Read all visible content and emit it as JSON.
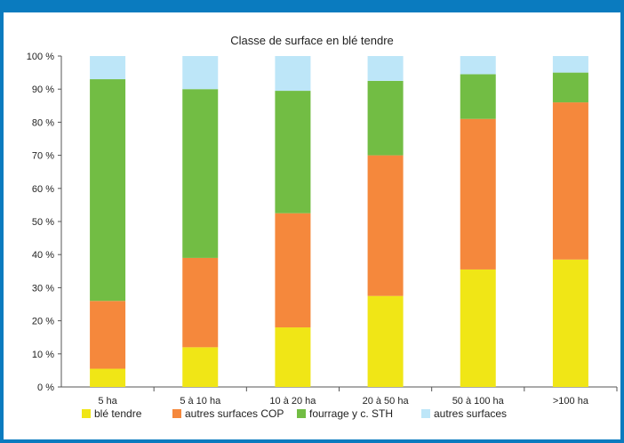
{
  "chart_data": {
    "type": "bar",
    "stacked": true,
    "normalized": true,
    "title": "Classe de surface en blé tendre",
    "categories": [
      "5 ha",
      "5 à 10 ha",
      "10 à 20 ha",
      "20 à 50 ha",
      "50 à 100 ha",
      ">100 ha"
    ],
    "series": [
      {
        "name": "blé tendre",
        "color": "#f0e616",
        "values": [
          5.5,
          12,
          18,
          27.5,
          35.5,
          38.5
        ]
      },
      {
        "name": "autres surfaces COP",
        "color": "#f5883c",
        "values": [
          20.5,
          27,
          34.5,
          42.5,
          45.5,
          47.5
        ]
      },
      {
        "name": "fourrage y c. STH",
        "color": "#72bd44",
        "values": [
          67,
          51,
          37,
          22.5,
          13.5,
          9
        ]
      },
      {
        "name": "autres surfaces",
        "color": "#bde6f8",
        "values": [
          7,
          10,
          10.5,
          7.5,
          5.5,
          5
        ]
      }
    ],
    "yticks": [
      "0 %",
      "10 %",
      "20 %",
      "30 %",
      "40 %",
      "50 %",
      "60 %",
      "70 %",
      "80 %",
      "90 %",
      "100 %"
    ],
    "ylim": [
      0,
      100
    ],
    "grid": false,
    "legend_position": "bottom"
  }
}
